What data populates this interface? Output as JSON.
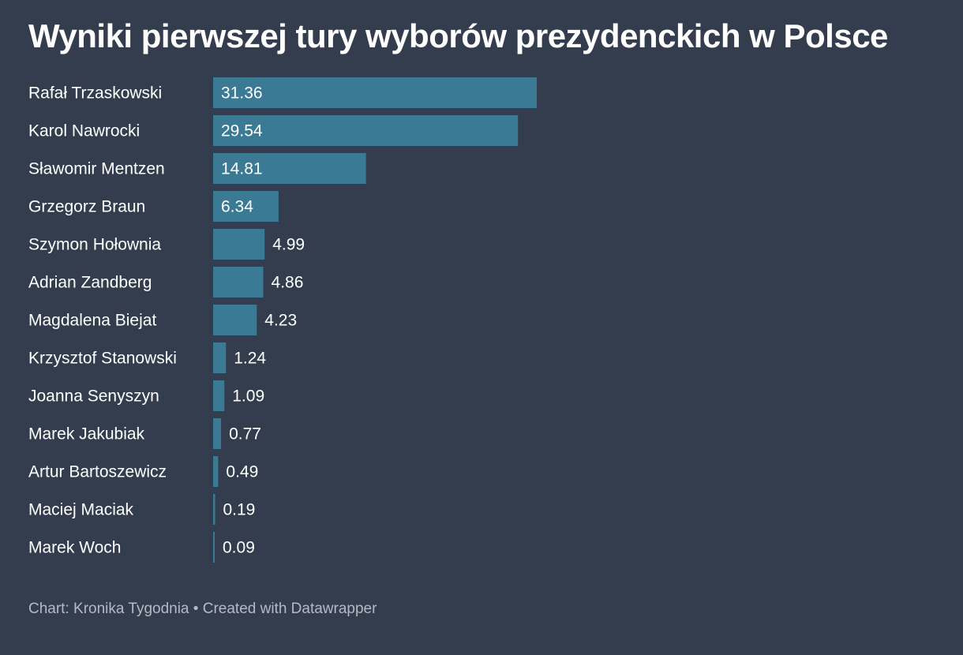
{
  "title": "Wyniki pierwszej tury wyborów prezydenckich w Polsce",
  "footer": {
    "source_label": "Chart:",
    "source": "Kronika Tygodnia",
    "separator": "•",
    "credit": "Created with Datawrapper"
  },
  "colors": {
    "background": "#333d4e",
    "bar": "#3a7a95",
    "text": "#ffffff",
    "footer_text": "#b4bac4"
  },
  "chart_data": {
    "type": "bar",
    "orientation": "horizontal",
    "title": "Wyniki pierwszej tury wyborów prezydenckich w Polsce",
    "categories": [
      "Rafał Trzaskowski",
      "Karol Nawrocki",
      "Sławomir Mentzen",
      "Grzegorz Braun",
      "Szymon Hołownia",
      "Adrian Zandberg",
      "Magdalena Biejat",
      "Krzysztof Stanowski",
      "Joanna Senyszyn",
      "Marek Jakubiak",
      "Artur Bartoszewicz",
      "Maciej Maciak",
      "Marek Woch"
    ],
    "values": [
      31.36,
      29.54,
      14.81,
      6.34,
      4.99,
      4.86,
      4.23,
      1.24,
      1.09,
      0.77,
      0.49,
      0.19,
      0.09
    ],
    "value_labels": [
      "31.36",
      "29.54",
      "14.81",
      "6.34",
      "4.99",
      "4.86",
      "4.23",
      "1.24",
      "1.09",
      "0.77",
      "0.49",
      "0.19",
      "0.09"
    ],
    "xlim": [
      0,
      31.36
    ],
    "grid": false,
    "legend": "none"
  }
}
